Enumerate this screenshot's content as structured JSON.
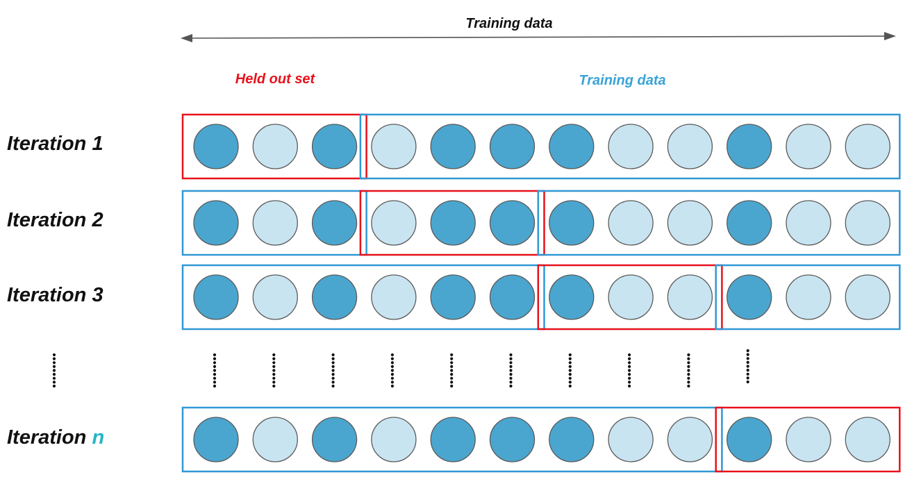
{
  "top_label": "Training data",
  "legend": {
    "held_out": "Held out set",
    "training": "Training data"
  },
  "colors": {
    "dark_circle": "#4aa6cf",
    "light_circle": "#c9e4f1",
    "circle_stroke": "#5a5a5a",
    "held_out_box": "#e8111b",
    "training_box": "#2f98d6",
    "held_out_text": "#e8111b",
    "training_text": "#3aa3d6",
    "n_highlight": "#26b5c5",
    "text": "#111111"
  },
  "iterations": [
    {
      "prefix": "Iteration ",
      "suffix": "1",
      "circles": [
        "dark",
        "light",
        "dark",
        "light",
        "dark",
        "dark",
        "dark",
        "light",
        "light",
        "dark",
        "light",
        "light"
      ],
      "held_out": [
        0,
        2
      ]
    },
    {
      "prefix": "Iteration ",
      "suffix": "2",
      "circles": [
        "dark",
        "light",
        "dark",
        "light",
        "dark",
        "dark",
        "dark",
        "light",
        "light",
        "dark",
        "light",
        "light"
      ],
      "held_out": [
        3,
        5
      ]
    },
    {
      "prefix": "Iteration ",
      "suffix": "3",
      "circles": [
        "dark",
        "light",
        "dark",
        "light",
        "dark",
        "dark",
        "dark",
        "light",
        "light",
        "dark",
        "light",
        "light"
      ],
      "held_out": [
        6,
        8
      ]
    },
    {
      "prefix": "Iteration ",
      "suffix": "n",
      "suffix_highlight": true,
      "circles": [
        "dark",
        "light",
        "dark",
        "light",
        "dark",
        "dark",
        "dark",
        "light",
        "light",
        "dark",
        "light",
        "light"
      ],
      "held_out": [
        9,
        11
      ]
    }
  ]
}
